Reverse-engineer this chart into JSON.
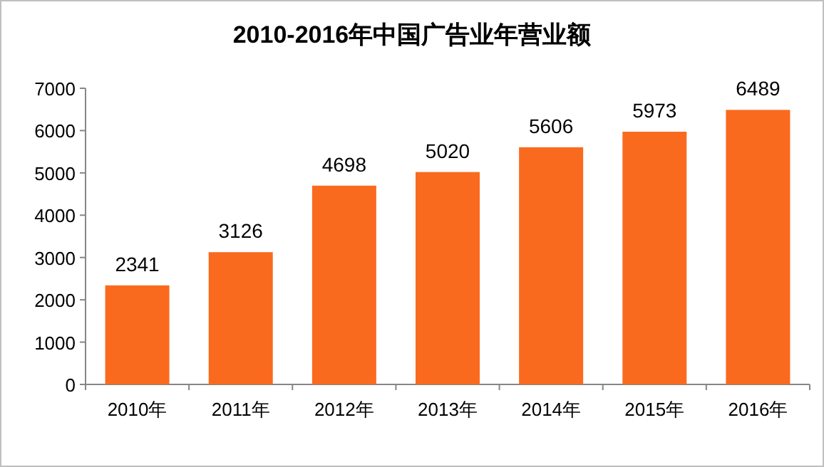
{
  "chart_data": {
    "type": "bar",
    "title": "2010-2016年中国广告业年营业额",
    "categories": [
      "2010年",
      "2011年",
      "2012年",
      "2013年",
      "2014年",
      "2015年",
      "2016年"
    ],
    "values": [
      2341,
      3126,
      4698,
      5020,
      5606,
      5973,
      6489
    ],
    "color": "#fa6a1e",
    "ylim": [
      0,
      7000
    ],
    "yticks": [
      0,
      1000,
      2000,
      3000,
      4000,
      5000,
      6000,
      7000
    ],
    "data_labels": true
  }
}
